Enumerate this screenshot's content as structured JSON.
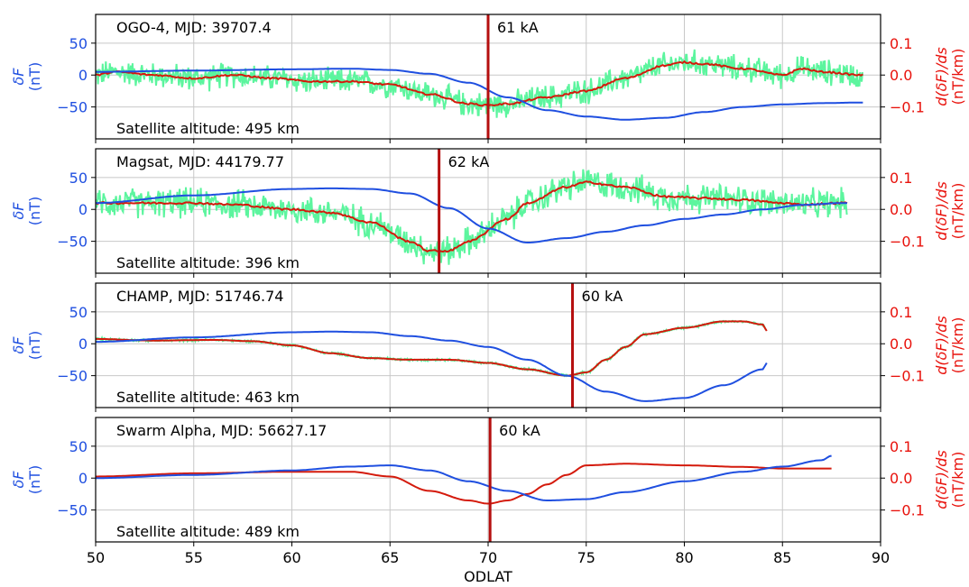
{
  "chart_data": {
    "type": "line",
    "xlabel": "ODLAT",
    "xlim": [
      50,
      90
    ],
    "x_ticks": [
      50,
      55,
      60,
      65,
      70,
      75,
      80,
      85,
      90
    ],
    "left_axis": {
      "label_line1": "δF",
      "label_line2": "(nT)",
      "color": "#1f4fe0",
      "ylim": [
        -100,
        95
      ],
      "ticks": [
        50,
        0,
        -50
      ],
      "tick_labels": [
        "50",
        "0",
        "−50"
      ]
    },
    "right_axis": {
      "label_line1": "d(δF)/ds",
      "label_line2": "(nT/km)",
      "color": "#e8120c",
      "ylim": [
        -0.2,
        0.19
      ],
      "ticks": [
        0.1,
        0.0,
        -0.1
      ],
      "tick_labels": [
        "0.1",
        "0.0",
        "−0.1"
      ]
    },
    "grid": true,
    "colors": {
      "deltaF": "#1f4fe0",
      "derivative_raw": "#5cf59e",
      "derivative_smooth": "#d41a0c",
      "boundary": "#b50f0f"
    },
    "series_names": [
      "δF",
      "d(δF)/ds raw",
      "d(δF)/ds smoothed"
    ],
    "panels": [
      {
        "title": "OGO-4, MJD: 39707.4",
        "altitude": "Satellite altitude: 495 km",
        "current_label": "61 kA",
        "boundary_x": 70.0,
        "noise": 0.035,
        "x_end": 89.1,
        "deltaF": [
          [
            50,
            5
          ],
          [
            55,
            7
          ],
          [
            60,
            9
          ],
          [
            63,
            10
          ],
          [
            65,
            8
          ],
          [
            67,
            2
          ],
          [
            69,
            -12
          ],
          [
            71,
            -35
          ],
          [
            73,
            -55
          ],
          [
            75,
            -65
          ],
          [
            77,
            -70
          ],
          [
            79,
            -67
          ],
          [
            81,
            -58
          ],
          [
            83,
            -50
          ],
          [
            85,
            -46
          ],
          [
            87,
            -44
          ],
          [
            89,
            -43
          ]
        ],
        "derivative": [
          [
            50,
            0.0
          ],
          [
            51,
            0.01
          ],
          [
            53,
            0.0
          ],
          [
            55,
            -0.01
          ],
          [
            57,
            0.0
          ],
          [
            59,
            -0.01
          ],
          [
            61,
            -0.02
          ],
          [
            63,
            -0.02
          ],
          [
            65,
            -0.03
          ],
          [
            67,
            -0.06
          ],
          [
            69,
            -0.09
          ],
          [
            70,
            -0.095
          ],
          [
            71,
            -0.09
          ],
          [
            73,
            -0.07
          ],
          [
            75,
            -0.05
          ],
          [
            77,
            -0.01
          ],
          [
            79,
            0.03
          ],
          [
            80,
            0.04
          ],
          [
            81,
            0.035
          ],
          [
            83,
            0.02
          ],
          [
            85,
            0.0
          ],
          [
            86,
            0.02
          ],
          [
            87,
            0.01
          ],
          [
            89,
            0.0
          ]
        ]
      },
      {
        "title": "Magsat, MJD: 44179.77",
        "altitude": "Satellite altitude: 396 km",
        "current_label": "62 kA",
        "boundary_x": 67.5,
        "noise": 0.04,
        "x_end": 88.3,
        "deltaF": [
          [
            50,
            10
          ],
          [
            55,
            22
          ],
          [
            60,
            32
          ],
          [
            62,
            33
          ],
          [
            64,
            32
          ],
          [
            66,
            25
          ],
          [
            68,
            2
          ],
          [
            70,
            -30
          ],
          [
            72,
            -52
          ],
          [
            74,
            -45
          ],
          [
            76,
            -35
          ],
          [
            78,
            -25
          ],
          [
            80,
            -15
          ],
          [
            82,
            -8
          ],
          [
            84,
            0
          ],
          [
            86,
            7
          ],
          [
            88,
            10
          ]
        ],
        "derivative": [
          [
            50,
            0.02
          ],
          [
            52,
            0.02
          ],
          [
            55,
            0.02
          ],
          [
            57,
            0.015
          ],
          [
            60,
            0.0
          ],
          [
            62,
            -0.01
          ],
          [
            64,
            -0.04
          ],
          [
            66,
            -0.1
          ],
          [
            67,
            -0.13
          ],
          [
            68,
            -0.13
          ],
          [
            69,
            -0.1
          ],
          [
            71,
            -0.03
          ],
          [
            72,
            0.02
          ],
          [
            74,
            0.07
          ],
          [
            75,
            0.085
          ],
          [
            77,
            0.07
          ],
          [
            79,
            0.04
          ],
          [
            81,
            0.035
          ],
          [
            83,
            0.03
          ],
          [
            85,
            0.02
          ],
          [
            86,
            0.015
          ],
          [
            88,
            0.02
          ]
        ]
      },
      {
        "title": "CHAMP, MJD: 51746.74",
        "altitude": "Satellite altitude: 463 km",
        "current_label": "60 kA",
        "boundary_x": 74.3,
        "noise": 0.003,
        "x_end": 84.2,
        "deltaF": [
          [
            50,
            3
          ],
          [
            55,
            10
          ],
          [
            60,
            18
          ],
          [
            62,
            19
          ],
          [
            64,
            18
          ],
          [
            66,
            12
          ],
          [
            68,
            5
          ],
          [
            70,
            -5
          ],
          [
            72,
            -25
          ],
          [
            74,
            -50
          ],
          [
            76,
            -75
          ],
          [
            78,
            -90
          ],
          [
            80,
            -85
          ],
          [
            82,
            -65
          ],
          [
            84,
            -40
          ],
          [
            84.2,
            -30
          ]
        ],
        "derivative": [
          [
            50,
            0.015
          ],
          [
            53,
            0.01
          ],
          [
            56,
            0.012
          ],
          [
            58,
            0.008
          ],
          [
            60,
            -0.005
          ],
          [
            62,
            -0.03
          ],
          [
            64,
            -0.045
          ],
          [
            66,
            -0.05
          ],
          [
            68,
            -0.05
          ],
          [
            70,
            -0.06
          ],
          [
            72,
            -0.08
          ],
          [
            74,
            -0.1
          ],
          [
            75,
            -0.09
          ],
          [
            76,
            -0.05
          ],
          [
            77,
            -0.01
          ],
          [
            78,
            0.03
          ],
          [
            80,
            0.05
          ],
          [
            82,
            0.07
          ],
          [
            83,
            0.07
          ],
          [
            84,
            0.06
          ],
          [
            84.2,
            0.04
          ]
        ]
      },
      {
        "title": "Swarm Alpha, MJD: 56627.17",
        "altitude": "Satellite altitude: 489 km",
        "current_label": "60 kA",
        "boundary_x": 70.1,
        "noise": 0.0,
        "x_end": 87.5,
        "deltaF": [
          [
            50,
            0
          ],
          [
            55,
            5
          ],
          [
            60,
            12
          ],
          [
            63,
            18
          ],
          [
            65,
            20
          ],
          [
            67,
            12
          ],
          [
            69,
            -5
          ],
          [
            71,
            -20
          ],
          [
            73,
            -35
          ],
          [
            75,
            -33
          ],
          [
            77,
            -22
          ],
          [
            80,
            -5
          ],
          [
            83,
            10
          ],
          [
            85,
            18
          ],
          [
            87,
            28
          ],
          [
            87.5,
            35
          ]
        ],
        "derivative": [
          [
            50,
            0.005
          ],
          [
            55,
            0.015
          ],
          [
            60,
            0.02
          ],
          [
            63,
            0.02
          ],
          [
            65,
            0.005
          ],
          [
            67,
            -0.04
          ],
          [
            69,
            -0.07
          ],
          [
            70,
            -0.08
          ],
          [
            71,
            -0.07
          ],
          [
            72,
            -0.05
          ],
          [
            73,
            -0.02
          ],
          [
            74,
            0.01
          ],
          [
            75,
            0.04
          ],
          [
            77,
            0.045
          ],
          [
            80,
            0.04
          ],
          [
            83,
            0.035
          ],
          [
            85,
            0.03
          ],
          [
            87.5,
            0.03
          ]
        ]
      }
    ]
  }
}
